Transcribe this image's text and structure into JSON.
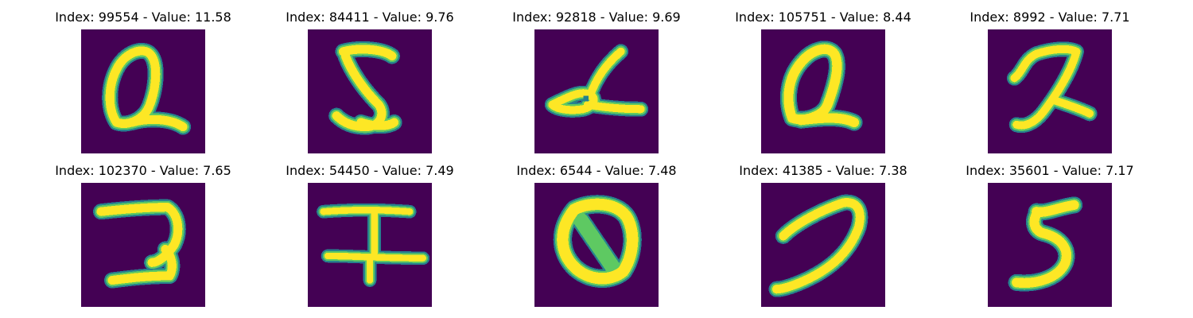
{
  "colors": {
    "background": "#440154",
    "stroke_outer": "#26828e",
    "stroke_mid": "#5ec962",
    "stroke_core": "#fde725"
  },
  "panels": [
    {
      "title": "Index: 99554 - Value: 11.58"
    },
    {
      "title": "Index: 84411 - Value: 9.76"
    },
    {
      "title": "Index: 92818 - Value: 9.69"
    },
    {
      "title": "Index: 105751 - Value: 8.44"
    },
    {
      "title": "Index: 8992 - Value: 7.71"
    },
    {
      "title": "Index: 102370 - Value: 7.65"
    },
    {
      "title": "Index: 54450 - Value: 7.49"
    },
    {
      "title": "Index: 6544 - Value: 7.48"
    },
    {
      "title": "Index: 41385 - Value: 7.38"
    },
    {
      "title": "Index: 35601 - Value: 7.17"
    }
  ]
}
